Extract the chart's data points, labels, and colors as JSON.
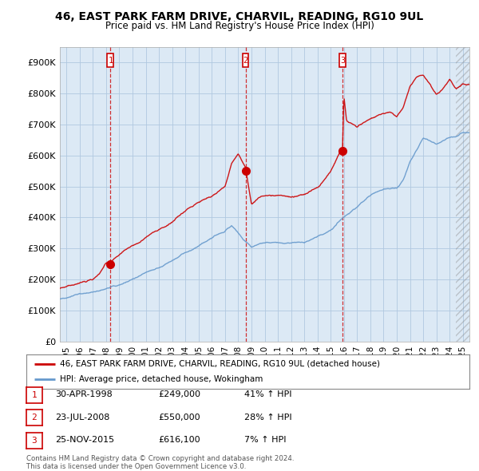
{
  "title": "46, EAST PARK FARM DRIVE, CHARVIL, READING, RG10 9UL",
  "subtitle": "Price paid vs. HM Land Registry's House Price Index (HPI)",
  "background_color": "#ffffff",
  "plot_bg_color": "#dce9f5",
  "grid_color": "#b0c8e0",
  "transactions": [
    {
      "num": 1,
      "date_label": "30-APR-1998",
      "date_x": 1998.33,
      "price": 249000,
      "pct": "41% ↑ HPI"
    },
    {
      "num": 2,
      "date_label": "23-JUL-2008",
      "date_x": 2008.55,
      "price": 550000,
      "pct": "28% ↑ HPI"
    },
    {
      "num": 3,
      "date_label": "25-NOV-2015",
      "date_x": 2015.9,
      "price": 616100,
      "pct": "7% ↑ HPI"
    }
  ],
  "red_line_color": "#cc0000",
  "blue_line_color": "#6699cc",
  "vline_color": "#cc0000",
  "marker_box_color": "#cc0000",
  "xlim": [
    1994.5,
    2025.5
  ],
  "ylim": [
    0,
    950000
  ],
  "yticks": [
    0,
    100000,
    200000,
    300000,
    400000,
    500000,
    600000,
    700000,
    800000,
    900000
  ],
  "xticks": [
    1995,
    1996,
    1997,
    1998,
    1999,
    2000,
    2001,
    2002,
    2003,
    2004,
    2005,
    2006,
    2007,
    2008,
    2009,
    2010,
    2011,
    2012,
    2013,
    2014,
    2015,
    2016,
    2017,
    2018,
    2019,
    2020,
    2021,
    2022,
    2023,
    2024,
    2025
  ],
  "legend_label_red": "46, EAST PARK FARM DRIVE, CHARVIL, READING, RG10 9UL (detached house)",
  "legend_label_blue": "HPI: Average price, detached house, Wokingham",
  "footer1": "Contains HM Land Registry data © Crown copyright and database right 2024.",
  "footer2": "This data is licensed under the Open Government Licence v3.0.",
  "hatch_start": 2024.5
}
